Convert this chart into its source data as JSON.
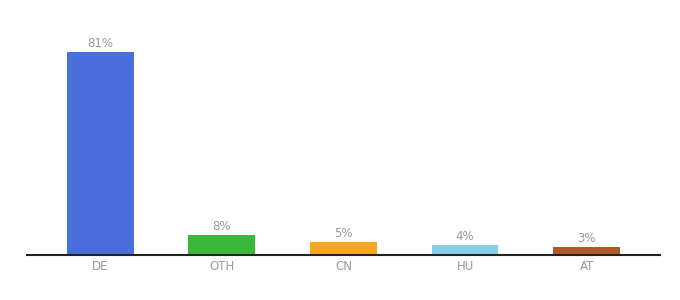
{
  "categories": [
    "DE",
    "OTH",
    "CN",
    "HU",
    "AT"
  ],
  "values": [
    81,
    8,
    5,
    4,
    3
  ],
  "labels": [
    "81%",
    "8%",
    "5%",
    "4%",
    "3%"
  ],
  "bar_colors": [
    "#4a6fdc",
    "#3ab83a",
    "#f5a623",
    "#87ceeb",
    "#b05a2a"
  ],
  "ylim": [
    0,
    92
  ],
  "background_color": "#ffffff",
  "label_color": "#999999",
  "label_fontsize": 8.5,
  "xlabel_fontsize": 8.5,
  "bar_width": 0.55
}
